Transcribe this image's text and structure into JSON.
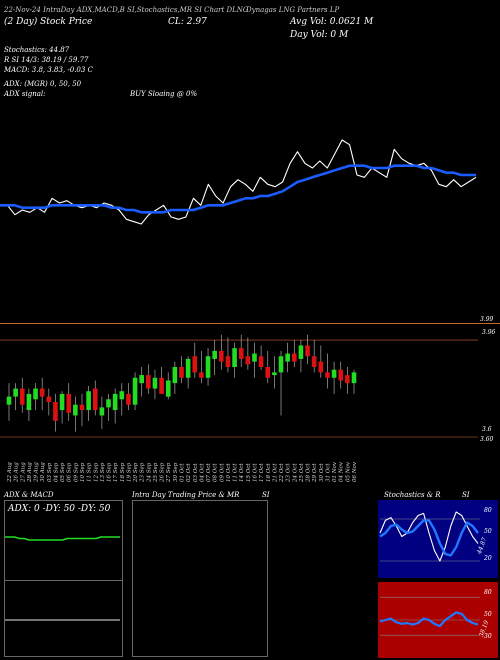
{
  "header": {
    "line1_left": "(2 Day) Stock Price",
    "line1_center": "CL: 2.97",
    "line1_title": "Dynagas LNG Partners LP",
    "line1_right": "Avg Vol: 0.0621  M",
    "line2_right": "Day Vol: 0   M",
    "line1_codes": "22-Nov-24 IntraDay ADX,MACD,B SI,Stochastics,MR SI Chart DLNG",
    "stoch": "Stochastics: 44.87",
    "rsi": "R SI 14/3: 38.19 / 59.77",
    "macd": "MACD: 3.8, 3.83, -0.03 C",
    "adx": "ADX: (MGR) 0,  50,  50",
    "adx_signal": "ADX  signal:",
    "buy_signal": "BUY Sloaing @ 0%"
  },
  "colors": {
    "background": "#000000",
    "price_line": "#ffffff",
    "ma_line": "#1a5cff",
    "up_candle": "#22dd22",
    "down_candle": "#dd1111",
    "separator": "#cc6633",
    "adx_line": "#22dd22",
    "stoch_panel": "#000080",
    "rsi_panel": "#aa0000"
  },
  "chart_data": [
    {
      "type": "line",
      "series": [
        {
          "values": [
            3.12,
            3.12,
            3.08,
            3.1,
            3.09,
            3.11,
            3.09,
            3.15,
            3.13,
            3.14,
            3.12,
            3.11,
            3.12,
            3.11,
            3.13,
            3.12,
            3.1,
            3.06,
            3.05,
            3.04,
            3.08,
            3.1,
            3.12,
            3.07,
            3.06,
            3.07,
            3.15,
            3.12,
            3.21,
            3.16,
            3.13,
            3.2,
            3.23,
            3.21,
            3.18,
            3.24,
            3.21,
            3.2,
            3.22,
            3.3,
            3.35,
            3.3,
            3.28,
            3.31,
            3.28,
            3.34,
            3.4,
            3.38,
            3.25,
            3.24,
            3.28,
            3.26,
            3.24,
            3.36,
            3.32,
            3.3,
            3.29,
            3.3,
            3.27,
            3.21,
            3.2,
            3.23,
            3.2,
            3.22,
            3.24
          ]
        },
        {
          "values": [
            3.12,
            3.12,
            3.12,
            3.11,
            3.11,
            3.11,
            3.11,
            3.12,
            3.12,
            3.12,
            3.12,
            3.12,
            3.12,
            3.12,
            3.12,
            3.11,
            3.11,
            3.1,
            3.1,
            3.09,
            3.09,
            3.09,
            3.09,
            3.1,
            3.1,
            3.1,
            3.1,
            3.11,
            3.12,
            3.12,
            3.12,
            3.13,
            3.14,
            3.15,
            3.15,
            3.16,
            3.16,
            3.17,
            3.18,
            3.2,
            3.22,
            3.23,
            3.24,
            3.25,
            3.26,
            3.27,
            3.28,
            3.29,
            3.29,
            3.29,
            3.28,
            3.28,
            3.28,
            3.29,
            3.29,
            3.29,
            3.29,
            3.28,
            3.28,
            3.27,
            3.26,
            3.26,
            3.25,
            3.25,
            3.25
          ]
        }
      ]
    },
    {
      "type": "bar",
      "price_labels": [
        "3.99",
        "3.96",
        "3.6",
        "3.60"
      ],
      "categories": [
        "22 Aug",
        "26 Aug",
        "27 Aug",
        "28 Aug",
        "29 Aug",
        "30 Aug",
        "03 Sep",
        "04 Sep",
        "05 Sep",
        "06 Sep",
        "09 Sep",
        "10 Sep",
        "11 Sep",
        "12 Sep",
        "13 Sep",
        "16 Sep",
        "17 Sep",
        "18 Sep",
        "19 Sep",
        "20 Sep",
        "23 Sep",
        "24 Sep",
        "25 Sep",
        "26 Sep",
        "27 Sep",
        "30 Sep",
        "01 Oct",
        "02 Oct",
        "03 Oct",
        "04 Oct",
        "07 Oct",
        "08 Oct",
        "09 Oct",
        "10 Oct",
        "11 Oct",
        "14 Oct",
        "15 Oct",
        "16 Oct",
        "17 Oct",
        "18 Oct",
        "21 Oct",
        "22 Oct",
        "23 Oct",
        "24 Oct",
        "25 Oct",
        "28 Oct",
        "29 Oct",
        "30 Oct",
        "31 Oct",
        "01 Nov",
        "04 Nov",
        "05 Nov",
        "06 Nov"
      ],
      "open": [
        3.72,
        3.75,
        3.78,
        3.7,
        3.74,
        3.78,
        3.75,
        3.73,
        3.7,
        3.76,
        3.68,
        3.72,
        3.7,
        3.78,
        3.68,
        3.71,
        3.7,
        3.74,
        3.76,
        3.72,
        3.8,
        3.83,
        3.78,
        3.82,
        3.75,
        3.8,
        3.86,
        3.82,
        3.9,
        3.84,
        3.82,
        3.89,
        3.92,
        3.9,
        3.86,
        3.93,
        3.9,
        3.88,
        3.9,
        3.86,
        3.83,
        3.84,
        3.88,
        3.91,
        3.89,
        3.94,
        3.9,
        3.88,
        3.84,
        3.82,
        3.85,
        3.83,
        3.8
      ],
      "high": [
        3.8,
        3.8,
        3.82,
        3.78,
        3.8,
        3.82,
        3.78,
        3.76,
        3.77,
        3.8,
        3.75,
        3.76,
        3.79,
        3.81,
        3.75,
        3.76,
        3.78,
        3.8,
        3.8,
        3.84,
        3.86,
        3.87,
        3.85,
        3.86,
        3.84,
        3.88,
        3.9,
        3.9,
        3.95,
        3.92,
        3.93,
        3.96,
        3.98,
        3.97,
        3.95,
        3.98,
        3.97,
        3.95,
        3.94,
        3.92,
        3.9,
        3.92,
        3.95,
        3.96,
        3.96,
        3.98,
        3.96,
        3.94,
        3.91,
        3.88,
        3.88,
        3.86,
        3.85
      ],
      "low": [
        3.66,
        3.7,
        3.69,
        3.66,
        3.7,
        3.7,
        3.68,
        3.62,
        3.65,
        3.66,
        3.62,
        3.64,
        3.66,
        3.68,
        3.63,
        3.66,
        3.65,
        3.68,
        3.7,
        3.7,
        3.75,
        3.76,
        3.74,
        3.76,
        3.74,
        3.76,
        3.8,
        3.78,
        3.82,
        3.8,
        3.79,
        3.83,
        3.85,
        3.84,
        3.82,
        3.86,
        3.85,
        3.82,
        3.85,
        3.8,
        3.78,
        3.68,
        3.84,
        3.86,
        3.84,
        3.87,
        3.84,
        3.82,
        3.78,
        3.76,
        3.78,
        3.76,
        3.76
      ],
      "close": [
        3.75,
        3.78,
        3.72,
        3.76,
        3.78,
        3.75,
        3.73,
        3.66,
        3.76,
        3.69,
        3.72,
        3.7,
        3.77,
        3.7,
        3.71,
        3.74,
        3.76,
        3.77,
        3.72,
        3.82,
        3.83,
        3.78,
        3.82,
        3.76,
        3.81,
        3.86,
        3.82,
        3.89,
        3.84,
        3.82,
        3.9,
        3.92,
        3.88,
        3.86,
        3.93,
        3.89,
        3.87,
        3.91,
        3.86,
        3.82,
        3.84,
        3.9,
        3.91,
        3.88,
        3.94,
        3.9,
        3.86,
        3.84,
        3.82,
        3.85,
        3.81,
        3.8,
        3.84
      ]
    },
    {
      "type": "line",
      "title": "ADX  & MACD",
      "label": "ADX: 0  -DY: 50  -DY: 50",
      "series": [
        {
          "values": [
            50,
            50,
            50,
            49,
            49,
            48,
            48,
            48,
            48,
            48,
            48,
            48,
            48,
            49,
            49,
            49,
            49,
            49,
            49,
            49,
            50,
            50,
            50,
            50,
            50
          ]
        },
        {
          "values": [
            22,
            22,
            22,
            22,
            22,
            22,
            22,
            22,
            22,
            22,
            22,
            22,
            22,
            22,
            22,
            22,
            22,
            22,
            22,
            22,
            22,
            22,
            22,
            22,
            22
          ]
        }
      ]
    },
    {
      "type": "line",
      "title": "Intra  Day Trading Price  & MR",
      "title_suffix": "SI",
      "series": []
    },
    {
      "type": "line",
      "title": "Stochastics & R",
      "title_suffix": "SI",
      "stoch_ticks": [
        "80",
        "50",
        "20"
      ],
      "stoch_value_label": "44.87",
      "rsi_ticks": [
        "80",
        "50",
        "30"
      ],
      "rsi_value_label": "38.19",
      "series": [
        {
          "values": [
            60,
            78,
            82,
            70,
            55,
            60,
            75,
            85,
            88,
            60,
            35,
            20,
            40,
            70,
            90,
            85,
            70,
            55,
            45
          ]
        },
        {
          "values": [
            55,
            60,
            70,
            72,
            65,
            60,
            62,
            70,
            78,
            78,
            65,
            45,
            30,
            28,
            40,
            60,
            75,
            70,
            60
          ]
        },
        {
          "values": [
            48,
            50,
            52,
            47,
            45,
            46,
            44,
            46,
            52,
            50,
            45,
            42,
            50,
            55,
            60,
            58,
            50,
            46,
            44
          ]
        }
      ]
    }
  ]
}
